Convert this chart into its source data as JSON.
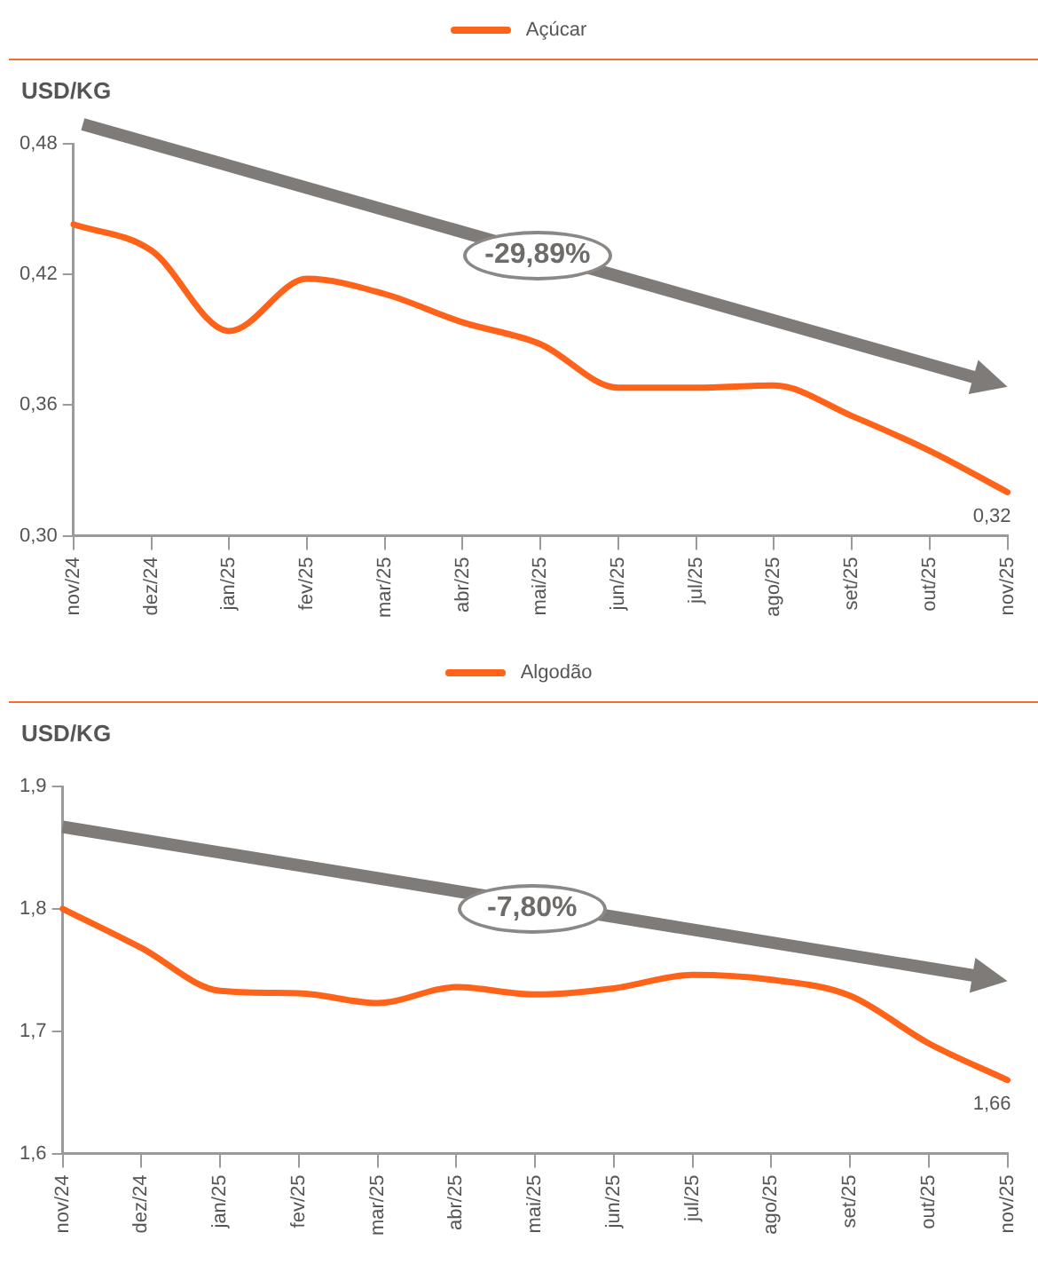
{
  "chart_data": [
    {
      "type": "line",
      "ylabel": "USD/KG",
      "categories": [
        "nov/24",
        "dez/24",
        "jan/25",
        "fev/25",
        "mar/25",
        "abr/25",
        "mai/25",
        "jun/25",
        "jul/25",
        "ago/25",
        "set/25",
        "out/25",
        "nov/25"
      ],
      "series": [
        {
          "name": "Açúcar",
          "color": "#ff6319",
          "values": [
            0.443,
            0.431,
            0.394,
            0.418,
            0.411,
            0.398,
            0.388,
            0.368,
            0.368,
            0.369,
            0.355,
            0.339,
            0.32
          ],
          "value_labels": [
            null,
            null,
            null,
            null,
            null,
            null,
            null,
            null,
            null,
            null,
            null,
            null,
            "0,32"
          ]
        }
      ],
      "ylim": [
        0.3,
        0.48
      ],
      "yticks": [
        {
          "value": 0.3,
          "label": "0,30"
        },
        {
          "value": 0.36,
          "label": "0,36"
        },
        {
          "value": 0.42,
          "label": "0,42"
        },
        {
          "value": 0.48,
          "label": "0,48"
        }
      ],
      "annotations": [
        "-29,89%"
      ],
      "grid": false,
      "legend": "top",
      "marker": "none",
      "line_style": "solid"
    },
    {
      "type": "line",
      "ylabel": "USD/KG",
      "categories": [
        "nov/24",
        "dez/24",
        "jan/25",
        "fev/25",
        "mar/25",
        "abr/25",
        "mai/25",
        "jun/25",
        "jul/25",
        "ago/25",
        "set/25",
        "out/25",
        "nov/25"
      ],
      "series": [
        {
          "name": "Algodão",
          "color": "#ff6319",
          "values": [
            1.8,
            1.768,
            1.733,
            1.731,
            1.723,
            1.736,
            1.73,
            1.735,
            1.746,
            1.742,
            1.729,
            1.69,
            1.66
          ],
          "value_labels": [
            null,
            null,
            null,
            null,
            null,
            null,
            null,
            null,
            null,
            null,
            null,
            null,
            "1,66"
          ]
        }
      ],
      "ylim": [
        1.6,
        1.9
      ],
      "yticks": [
        {
          "value": 1.6,
          "label": "1,6"
        },
        {
          "value": 1.7,
          "label": "1,7"
        },
        {
          "value": 1.8,
          "label": "1,8"
        },
        {
          "value": 1.9,
          "label": "1,9"
        }
      ],
      "annotations": [
        "-7,80%"
      ],
      "grid": false,
      "legend": "top",
      "marker": "none",
      "line_style": "solid"
    }
  ]
}
